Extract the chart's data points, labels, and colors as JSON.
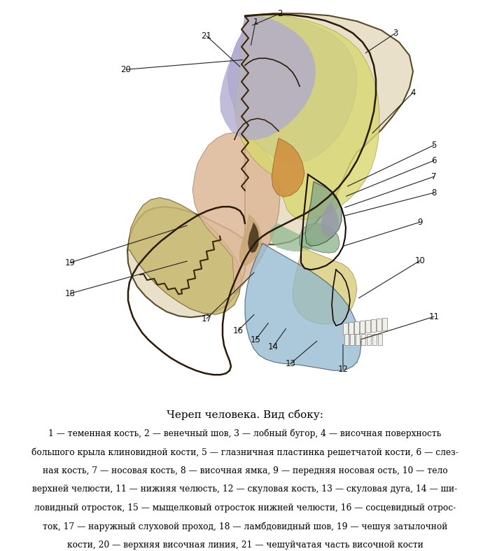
{
  "title": "Череп человека. Вид сбоку:",
  "caption_italic_numbers": [
    "1",
    "2",
    "3",
    "4",
    "5",
    "6",
    "7",
    "8",
    "9",
    "10",
    "11",
    "12",
    "13",
    "14",
    "15",
    "16",
    "17",
    "18",
    "19",
    "20",
    "21"
  ],
  "caption_text": [
    [
      {
        "style": "italic",
        "text": "1"
      },
      {
        "style": "normal",
        "text": " — теменная кость, "
      },
      {
        "style": "italic",
        "text": "2"
      },
      {
        "style": "normal",
        "text": " — венечный шов, "
      },
      {
        "style": "italic",
        "text": "3"
      },
      {
        "style": "normal",
        "text": " — лобный бугор, "
      },
      {
        "style": "italic",
        "text": "4"
      },
      {
        "style": "normal",
        "text": " — височная поверхность"
      }
    ],
    [
      {
        "style": "normal",
        "text": "большого крыла клиновидной кости, "
      },
      {
        "style": "italic",
        "text": "5"
      },
      {
        "style": "normal",
        "text": " — глазничная пластинка решетчатой кости, "
      },
      {
        "style": "italic",
        "text": "6"
      },
      {
        "style": "normal",
        "text": " — слез-"
      }
    ],
    [
      {
        "style": "normal",
        "text": "ная кость, "
      },
      {
        "style": "italic",
        "text": "7"
      },
      {
        "style": "normal",
        "text": " — носовая кость, "
      },
      {
        "style": "italic",
        "text": "8"
      },
      {
        "style": "normal",
        "text": " — височная ямка, "
      },
      {
        "style": "italic",
        "text": "9"
      },
      {
        "style": "normal",
        "text": " — передняя носовая ость, "
      },
      {
        "style": "italic",
        "text": "10"
      },
      {
        "style": "normal",
        "text": " — тело"
      }
    ],
    [
      {
        "style": "normal",
        "text": "верхней челюсти, "
      },
      {
        "style": "italic",
        "text": "11"
      },
      {
        "style": "normal",
        "text": " — нижняя челюсть, "
      },
      {
        "style": "italic",
        "text": "12"
      },
      {
        "style": "normal",
        "text": " — скуловая кость, "
      },
      {
        "style": "italic",
        "text": "13"
      },
      {
        "style": "normal",
        "text": " — скуловая дуга, "
      },
      {
        "style": "italic",
        "text": "14"
      },
      {
        "style": "normal",
        "text": " — ши-"
      }
    ],
    [
      {
        "style": "normal",
        "text": "ловидный отросток, "
      },
      {
        "style": "italic",
        "text": "15"
      },
      {
        "style": "normal",
        "text": " — мыщелковый отросток нижней челюсти, "
      },
      {
        "style": "italic",
        "text": "16"
      },
      {
        "style": "normal",
        "text": " — сосцевидный отрос-"
      }
    ],
    [
      {
        "style": "normal",
        "text": "ток, "
      },
      {
        "style": "italic",
        "text": "17"
      },
      {
        "style": "normal",
        "text": " — наружный слуховой проход, "
      },
      {
        "style": "italic",
        "text": "18"
      },
      {
        "style": "normal",
        "text": " — ламбдовидный шов, "
      },
      {
        "style": "italic",
        "text": "19"
      },
      {
        "style": "normal",
        "text": " — чешуя затылочной"
      }
    ],
    [
      {
        "style": "normal",
        "text": "кости, "
      },
      {
        "style": "italic",
        "text": "20"
      },
      {
        "style": "normal",
        "text": " — верхняя височная линия, "
      },
      {
        "style": "italic",
        "text": "21"
      },
      {
        "style": "normal",
        "text": " — чешуйчатая часть височной кости"
      }
    ]
  ],
  "bg_color": "#ffffff",
  "figsize": [
    7.0,
    7.87
  ],
  "dpi": 100,
  "skull_bg_color": "#f0ede0",
  "parietal_color": "#b0aad0",
  "frontal_color": "#d8d870",
  "temporal_color": "#e0c8a8",
  "occipital_color": "#c8b870",
  "sphenoid_color": "#d09040",
  "zygomatic_color": "#90b890",
  "upper_jaw_color": "#d8cc80",
  "lower_jaw_color": "#90b8d0",
  "lambdoid_color": "#b8a860",
  "label_color": "#111111",
  "line_color": "#222222"
}
